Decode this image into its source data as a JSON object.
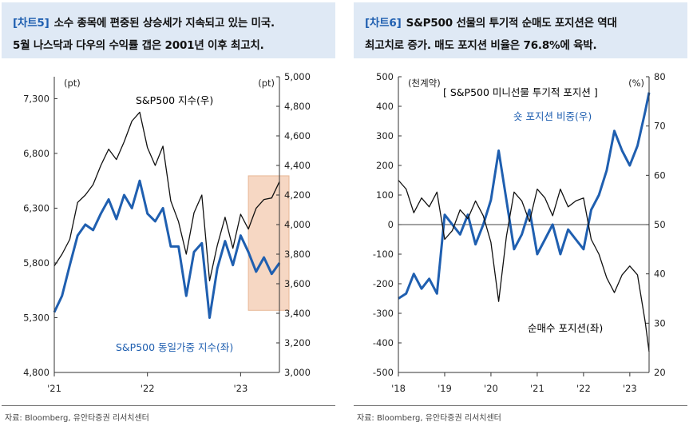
{
  "panels": [
    {
      "id": "chart5",
      "tag": "[차트5]",
      "title_line1": "소수 종목에 편중된 상승세가 지속되고 있는 미국.",
      "title_line2": "5월 나스닥과 다우의 수익률 갭은 2001년 이후 최고치.",
      "source": "자료: Bloomberg, 유안타증권 리서치센터"
    },
    {
      "id": "chart6",
      "tag": "[차트6]",
      "title_line1": "S&P500 선물의 투기적 순매도 포지션은 역대",
      "title_line2": "최고치로 증가. 매도 포지션 비율은 76.8%에 육박.",
      "source": "자료: Bloomberg, 유안타증권 리서치센터"
    }
  ],
  "chart_data": [
    {
      "type": "line",
      "x_tick_labels": [
        "'21",
        "'22",
        "'23"
      ],
      "xlim": [
        "2021-01",
        "2023-06"
      ],
      "y_left": {
        "unit_label": "(pt)",
        "ylim": [
          4800,
          7500
        ],
        "tick_labels": [
          "4,800",
          "5,300",
          "5,800",
          "6,300",
          "6,800",
          "7,300"
        ]
      },
      "y_right": {
        "unit_label": "(pt)",
        "ylim": [
          3000,
          5000
        ],
        "tick_labels": [
          "3,000",
          "3,200",
          "3,400",
          "3,600",
          "3,800",
          "4,000",
          "4,200",
          "4,400",
          "4,600",
          "4,800",
          "5,000"
        ]
      },
      "highlight": {
        "x_range": [
          "2023-02",
          "2023-06"
        ],
        "y_right_range": [
          3420,
          4330
        ],
        "color": "#f6d7c3"
      },
      "series": [
        {
          "name": "S&P500 지수(우)",
          "axis": "right",
          "color": "#111111",
          "points": [
            [
              "2021-01",
              3720
            ],
            [
              "2021-02",
              3800
            ],
            [
              "2021-03",
              3900
            ],
            [
              "2021-04",
              4150
            ],
            [
              "2021-05",
              4200
            ],
            [
              "2021-06",
              4270
            ],
            [
              "2021-07",
              4400
            ],
            [
              "2021-08",
              4510
            ],
            [
              "2021-09",
              4440
            ],
            [
              "2021-10",
              4560
            ],
            [
              "2021-11",
              4700
            ],
            [
              "2021-12",
              4760
            ],
            [
              "2022-01",
              4520
            ],
            [
              "2022-02",
              4400
            ],
            [
              "2022-03",
              4530
            ],
            [
              "2022-04",
              4160
            ],
            [
              "2022-05",
              4020
            ],
            [
              "2022-06",
              3800
            ],
            [
              "2022-07",
              4080
            ],
            [
              "2022-08",
              4200
            ],
            [
              "2022-09",
              3620
            ],
            [
              "2022-10",
              3860
            ],
            [
              "2022-11",
              4050
            ],
            [
              "2022-12",
              3840
            ],
            [
              "2023-01",
              4070
            ],
            [
              "2023-02",
              3970
            ],
            [
              "2023-03",
              4110
            ],
            [
              "2023-04",
              4170
            ],
            [
              "2023-05",
              4180
            ],
            [
              "2023-06",
              4290
            ]
          ]
        },
        {
          "name": "S&P500 동일가중 지수(좌)",
          "axis": "left",
          "color": "#1f5fb0",
          "points": [
            [
              "2021-01",
              5350
            ],
            [
              "2021-02",
              5500
            ],
            [
              "2021-03",
              5780
            ],
            [
              "2021-04",
              6050
            ],
            [
              "2021-05",
              6150
            ],
            [
              "2021-06",
              6100
            ],
            [
              "2021-07",
              6250
            ],
            [
              "2021-08",
              6380
            ],
            [
              "2021-09",
              6200
            ],
            [
              "2021-10",
              6420
            ],
            [
              "2021-11",
              6300
            ],
            [
              "2021-12",
              6550
            ],
            [
              "2022-01",
              6250
            ],
            [
              "2022-02",
              6180
            ],
            [
              "2022-03",
              6300
            ],
            [
              "2022-04",
              5950
            ],
            [
              "2022-05",
              5950
            ],
            [
              "2022-06",
              5500
            ],
            [
              "2022-07",
              5900
            ],
            [
              "2022-08",
              5980
            ],
            [
              "2022-09",
              5300
            ],
            [
              "2022-10",
              5750
            ],
            [
              "2022-11",
              6000
            ],
            [
              "2022-12",
              5780
            ],
            [
              "2023-01",
              6050
            ],
            [
              "2023-02",
              5900
            ],
            [
              "2023-03",
              5720
            ],
            [
              "2023-04",
              5850
            ],
            [
              "2023-05",
              5700
            ],
            [
              "2023-06",
              5800
            ]
          ]
        }
      ]
    },
    {
      "type": "line",
      "x_tick_labels": [
        "'18",
        "'19",
        "'20",
        "'21",
        "'22",
        "'23"
      ],
      "xlim": [
        "2018-01",
        "2023-06"
      ],
      "y_left": {
        "unit_label": "(천계약)",
        "ylim": [
          -500,
          500
        ],
        "tick_labels": [
          "-500",
          "-400",
          "-300",
          "-200",
          "-100",
          "0",
          "100",
          "200",
          "300",
          "400",
          "500"
        ]
      },
      "y_right": {
        "unit_label": "(%)",
        "ylim": [
          20,
          80
        ],
        "tick_labels": [
          "20",
          "30",
          "40",
          "50",
          "60",
          "70",
          "80"
        ]
      },
      "inner_title": "[ S&P500 미니선물 투기적 포지션 ]",
      "zero_line": true,
      "series": [
        {
          "name": "숏 포지션 비중(우)",
          "axis": "right",
          "color": "#1f5fb0",
          "points": [
            [
              "2018-01",
              35
            ],
            [
              "2018-03",
              36
            ],
            [
              "2018-05",
              40
            ],
            [
              "2018-07",
              37
            ],
            [
              "2018-09",
              39
            ],
            [
              "2018-11",
              36
            ],
            [
              "2019-01",
              52
            ],
            [
              "2019-03",
              50
            ],
            [
              "2019-05",
              48
            ],
            [
              "2019-07",
              52
            ],
            [
              "2019-09",
              46
            ],
            [
              "2019-11",
              50
            ],
            [
              "2020-01",
              55
            ],
            [
              "2020-03",
              65
            ],
            [
              "2020-05",
              55
            ],
            [
              "2020-07",
              45
            ],
            [
              "2020-09",
              48
            ],
            [
              "2020-11",
              53
            ],
            [
              "2021-01",
              44
            ],
            [
              "2021-03",
              47
            ],
            [
              "2021-05",
              50
            ],
            [
              "2021-07",
              44
            ],
            [
              "2021-09",
              49
            ],
            [
              "2021-11",
              47
            ],
            [
              "2022-01",
              45
            ],
            [
              "2022-03",
              53
            ],
            [
              "2022-05",
              56
            ],
            [
              "2022-07",
              61
            ],
            [
              "2022-09",
              69
            ],
            [
              "2022-11",
              65
            ],
            [
              "2023-01",
              62
            ],
            [
              "2023-03",
              66
            ],
            [
              "2023-05",
              73
            ],
            [
              "2023-06",
              76.8
            ]
          ]
        },
        {
          "name": "순매수 포지션(좌)",
          "axis": "left",
          "color": "#111111",
          "points": [
            [
              "2018-01",
              150
            ],
            [
              "2018-03",
              120
            ],
            [
              "2018-05",
              40
            ],
            [
              "2018-07",
              90
            ],
            [
              "2018-09",
              60
            ],
            [
              "2018-11",
              110
            ],
            [
              "2019-01",
              -50
            ],
            [
              "2019-03",
              -20
            ],
            [
              "2019-05",
              50
            ],
            [
              "2019-07",
              20
            ],
            [
              "2019-09",
              80
            ],
            [
              "2019-11",
              30
            ],
            [
              "2020-01",
              -60
            ],
            [
              "2020-03",
              -260
            ],
            [
              "2020-05",
              -40
            ],
            [
              "2020-07",
              110
            ],
            [
              "2020-09",
              80
            ],
            [
              "2020-11",
              10
            ],
            [
              "2021-01",
              120
            ],
            [
              "2021-03",
              90
            ],
            [
              "2021-05",
              30
            ],
            [
              "2021-07",
              120
            ],
            [
              "2021-09",
              60
            ],
            [
              "2021-11",
              80
            ],
            [
              "2022-01",
              90
            ],
            [
              "2022-03",
              -50
            ],
            [
              "2022-05",
              -100
            ],
            [
              "2022-07",
              -180
            ],
            [
              "2022-09",
              -230
            ],
            [
              "2022-11",
              -170
            ],
            [
              "2023-01",
              -140
            ],
            [
              "2023-03",
              -170
            ],
            [
              "2023-05",
              -330
            ],
            [
              "2023-06",
              -430
            ]
          ]
        }
      ]
    }
  ],
  "annotations": {
    "c5_sp500": "S&P500 지수(우)",
    "c5_equal": "S&P500 동일가중 지수(좌)",
    "c6_title": "[ S&P500 미니선물 투기적 포지션 ]",
    "c6_short": "숏 포지션 비중(우)",
    "c6_net": "순매수 포지션(좌)"
  }
}
